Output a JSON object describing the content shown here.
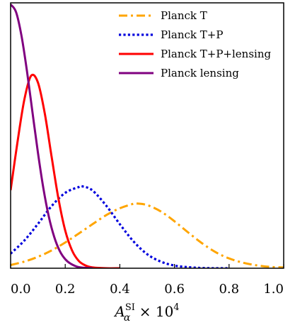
{
  "chart_data": {
    "type": "line",
    "xlabel": "A_α^SI × 10^4",
    "xlabel_parts": {
      "main": "A",
      "sub": "α",
      "sup": "SI",
      "rest": " × 10",
      "exp": "4"
    },
    "xlim": [
      0.0,
      1.0
    ],
    "x_ticks": [
      "0.0",
      "0.2",
      "0.4",
      "0.6",
      "0.8",
      "1.0"
    ],
    "y_ticks_visible": false,
    "legend_position": "top-right",
    "series": [
      {
        "name": "Planck T",
        "color": "#FFA500",
        "linestyle": "dash-dot",
        "x": [
          0.0,
          0.05,
          0.1,
          0.15,
          0.2,
          0.25,
          0.3,
          0.35,
          0.4,
          0.45,
          0.46,
          0.5,
          0.55,
          0.6,
          0.65,
          0.7,
          0.75,
          0.8,
          0.85,
          0.9,
          0.95,
          1.0
        ],
        "y": [
          0.012,
          0.025,
          0.043,
          0.067,
          0.097,
          0.131,
          0.166,
          0.2,
          0.226,
          0.243,
          0.244,
          0.238,
          0.214,
          0.177,
          0.135,
          0.095,
          0.061,
          0.037,
          0.021,
          0.011,
          0.005,
          0.003
        ]
      },
      {
        "name": "Planck T+P",
        "color": "#0000DD",
        "linestyle": "dotted",
        "x": [
          0.0,
          0.05,
          0.1,
          0.15,
          0.2,
          0.25,
          0.265,
          0.3,
          0.35,
          0.4,
          0.45,
          0.5,
          0.55,
          0.6,
          0.65,
          0.7,
          0.75,
          0.8
        ],
        "y": [
          0.055,
          0.104,
          0.167,
          0.234,
          0.284,
          0.306,
          0.308,
          0.293,
          0.236,
          0.166,
          0.101,
          0.053,
          0.025,
          0.01,
          0.004,
          0.001,
          0.0,
          0.0
        ]
      },
      {
        "name": "Planck T+P+lensing",
        "color": "#FF0000",
        "linestyle": "solid",
        "x": [
          0.0,
          0.025,
          0.05,
          0.075,
          0.1,
          0.125,
          0.15,
          0.175,
          0.2,
          0.225,
          0.25,
          0.275,
          0.3,
          0.35,
          0.4
        ],
        "y": [
          0.294,
          0.474,
          0.634,
          0.725,
          0.7,
          0.584,
          0.421,
          0.263,
          0.142,
          0.067,
          0.027,
          0.01,
          0.003,
          0.0,
          0.0
        ]
      },
      {
        "name": "Planck lensing",
        "color": "#800080",
        "linestyle": "solid",
        "x": [
          0.0,
          0.02,
          0.04,
          0.06,
          0.08,
          0.1,
          0.12,
          0.14,
          0.16,
          0.18,
          0.2,
          0.22,
          0.25,
          0.3
        ],
        "y": [
          0.994,
          0.965,
          0.875,
          0.742,
          0.588,
          0.436,
          0.301,
          0.194,
          0.117,
          0.065,
          0.034,
          0.017,
          0.004,
          0.0
        ]
      }
    ]
  }
}
